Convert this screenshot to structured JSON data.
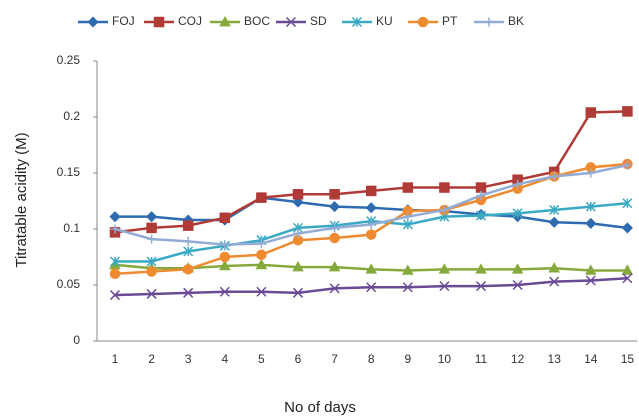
{
  "chart_data": {
    "type": "line",
    "x_label": "No of days",
    "y_label": "Titratable acidity (M)",
    "categories": [
      "1",
      "2",
      "3",
      "4",
      "5",
      "6",
      "7",
      "8",
      "9",
      "10",
      "11",
      "12",
      "13",
      "14",
      "15"
    ],
    "ylim": [
      0,
      0.25
    ],
    "yticks": [
      0,
      0.05,
      0.1,
      0.15,
      0.2,
      0.25
    ],
    "grid": false,
    "legend": "top",
    "series": [
      {
        "name": "FOJ",
        "color": "#2e6bb0",
        "marker": "diamond",
        "values": [
          0.111,
          0.111,
          0.108,
          0.108,
          0.128,
          0.124,
          0.12,
          0.119,
          0.117,
          0.116,
          0.113,
          0.111,
          0.106,
          0.105,
          0.101
        ]
      },
      {
        "name": "COJ",
        "color": "#b03a36",
        "marker": "square",
        "values": [
          0.097,
          0.101,
          0.103,
          0.11,
          0.128,
          0.131,
          0.131,
          0.134,
          0.137,
          0.137,
          0.137,
          0.144,
          0.151,
          0.204,
          0.205
        ]
      },
      {
        "name": "BOC",
        "color": "#86a93c",
        "marker": "triangle",
        "values": [
          0.068,
          0.065,
          0.065,
          0.067,
          0.068,
          0.066,
          0.066,
          0.064,
          0.063,
          0.064,
          0.064,
          0.064,
          0.065,
          0.063,
          0.063
        ]
      },
      {
        "name": "SD",
        "color": "#6a4a94",
        "marker": "x",
        "values": [
          0.041,
          0.042,
          0.043,
          0.044,
          0.044,
          0.043,
          0.047,
          0.048,
          0.048,
          0.049,
          0.049,
          0.05,
          0.053,
          0.054,
          0.056
        ]
      },
      {
        "name": "KU",
        "color": "#3aa9c4",
        "marker": "star",
        "values": [
          0.071,
          0.071,
          0.08,
          0.085,
          0.09,
          0.101,
          0.103,
          0.107,
          0.104,
          0.111,
          0.112,
          0.114,
          0.117,
          0.12,
          0.123
        ]
      },
      {
        "name": "PT",
        "color": "#ee8a30",
        "marker": "circle",
        "values": [
          0.06,
          0.062,
          0.064,
          0.075,
          0.077,
          0.09,
          0.092,
          0.095,
          0.116,
          0.117,
          0.126,
          0.136,
          0.147,
          0.155,
          0.158
        ]
      },
      {
        "name": "BK",
        "color": "#93acd6",
        "marker": "plus",
        "values": [
          0.1,
          0.091,
          0.089,
          0.086,
          0.087,
          0.096,
          0.101,
          0.104,
          0.111,
          0.117,
          0.13,
          0.14,
          0.147,
          0.15,
          0.157
        ]
      }
    ]
  }
}
